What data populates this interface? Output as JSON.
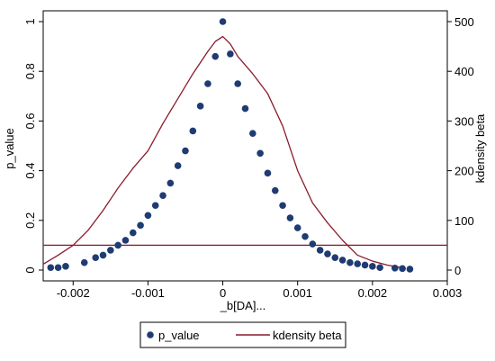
{
  "chart_data": {
    "type": "scatter",
    "xlabel": "_b[DA]...",
    "ylabel": "p_value",
    "y2label": "kdensity beta",
    "xlim": [
      -0.0024,
      0.003
    ],
    "ylim": [
      0,
      1
    ],
    "y2lim": [
      0,
      500
    ],
    "x_ticks": [
      -0.002,
      -0.001,
      0,
      0.001,
      0.002,
      0.003
    ],
    "x_tick_labels": [
      "-0.002",
      "-0.001",
      "0",
      "0.001",
      "0.002",
      "0.003"
    ],
    "y_ticks": [
      0,
      0.2,
      0.4,
      0.6,
      0.8,
      1
    ],
    "y_tick_labels": [
      "0",
      "0.2",
      "0.4",
      "0.6",
      "0.8",
      "1"
    ],
    "y2_ticks": [
      0,
      100,
      200,
      300,
      400,
      500
    ],
    "y2_tick_labels": [
      "0",
      "100",
      "200",
      "300",
      "400",
      "500"
    ],
    "grid": false,
    "legend_placement": "bottom",
    "series": [
      {
        "name": "p_value",
        "kind": "scatter",
        "color": "#1f3b73",
        "x": [
          -0.0023,
          -0.0022,
          -0.0021,
          -0.00185,
          -0.0017,
          -0.0016,
          -0.0015,
          -0.0014,
          -0.0013,
          -0.0012,
          -0.0011,
          -0.001,
          -0.0009,
          -0.0008,
          -0.0007,
          -0.0006,
          -0.0005,
          -0.0004,
          -0.0003,
          -0.0002,
          -0.0001,
          0,
          0.0001,
          0.0002,
          0.0003,
          0.0004,
          0.0005,
          0.0006,
          0.0007,
          0.0008,
          0.0009,
          0.001,
          0.0011,
          0.0012,
          0.0013,
          0.0014,
          0.0015,
          0.0016,
          0.0017,
          0.0018,
          0.0019,
          0.002,
          0.0021,
          0.0023,
          0.0024,
          0.0025
        ],
        "y": [
          0.01,
          0.01,
          0.015,
          0.03,
          0.05,
          0.06,
          0.08,
          0.1,
          0.12,
          0.15,
          0.18,
          0.22,
          0.26,
          0.3,
          0.35,
          0.42,
          0.48,
          0.56,
          0.66,
          0.75,
          0.86,
          1.0,
          0.87,
          0.75,
          0.65,
          0.55,
          0.47,
          0.39,
          0.32,
          0.26,
          0.21,
          0.17,
          0.135,
          0.105,
          0.08,
          0.065,
          0.05,
          0.04,
          0.03,
          0.025,
          0.02,
          0.015,
          0.01,
          0.008,
          0.006,
          0.004
        ]
      },
      {
        "name": "kdensity beta",
        "kind": "line",
        "axis": "right",
        "color": "#8b1a2b",
        "x": [
          -0.0024,
          -0.0022,
          -0.002,
          -0.0018,
          -0.0016,
          -0.0014,
          -0.0012,
          -0.001,
          -0.0008,
          -0.0006,
          -0.0004,
          -0.0002,
          -0.0001,
          0,
          0.0001,
          0.0002,
          0.0004,
          0.0006,
          0.0008,
          0.001,
          0.0012,
          0.0014,
          0.0016,
          0.0018,
          0.002,
          0.0022,
          0.0024
        ],
        "y": [
          12,
          30,
          50,
          80,
          120,
          165,
          205,
          240,
          295,
          345,
          395,
          440,
          460,
          470,
          455,
          430,
          395,
          355,
          290,
          200,
          135,
          95,
          60,
          30,
          18,
          10,
          5
        ]
      },
      {
        "name": "",
        "kind": "hline",
        "axis": "left",
        "color": "#8b1a2b",
        "y": 0.1
      }
    ]
  },
  "legend": {
    "items": [
      {
        "label": "p_value",
        "marker": "dot",
        "color": "#1f3b73"
      },
      {
        "label": "kdensity beta",
        "marker": "line",
        "color": "#8b1a2b"
      }
    ]
  }
}
